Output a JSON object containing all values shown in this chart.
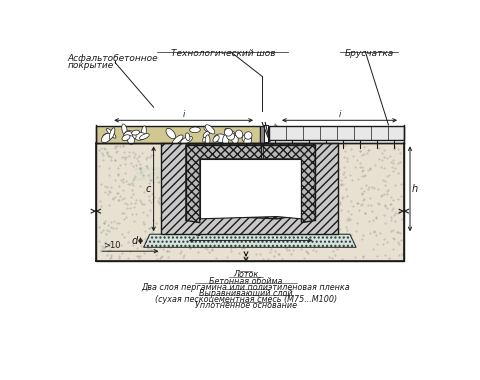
{
  "fig_w": 4.8,
  "fig_h": 3.8,
  "dpi": 100,
  "lc": "#1a1a1a",
  "soil_fc": "#e8e0d0",
  "asphalt_fc": "#d0c890",
  "oboyma_fc": "#c8c8c8",
  "lev_fc": "#d0e8e0",
  "br_fc": "#e8e8e8",
  "white": "#ffffff",
  "labels": {
    "asphalt": "Асфальтобетонное\nпокрытие",
    "tech_seam": "Технологический шов",
    "brusчatka": "Брусчатка",
    "lotok": "Лоток",
    "beton_oboyma": "Бетонная обойма",
    "dva_sloya": "Два слоя пергамина или полиэтиленовая пленка",
    "vyravnivayuschiy": "Выравнивающий слой",
    "suhaya": "(сухая пескоцементная смесь (М75...М100)",
    "uplotnennoe": "Уплотненное основание"
  }
}
